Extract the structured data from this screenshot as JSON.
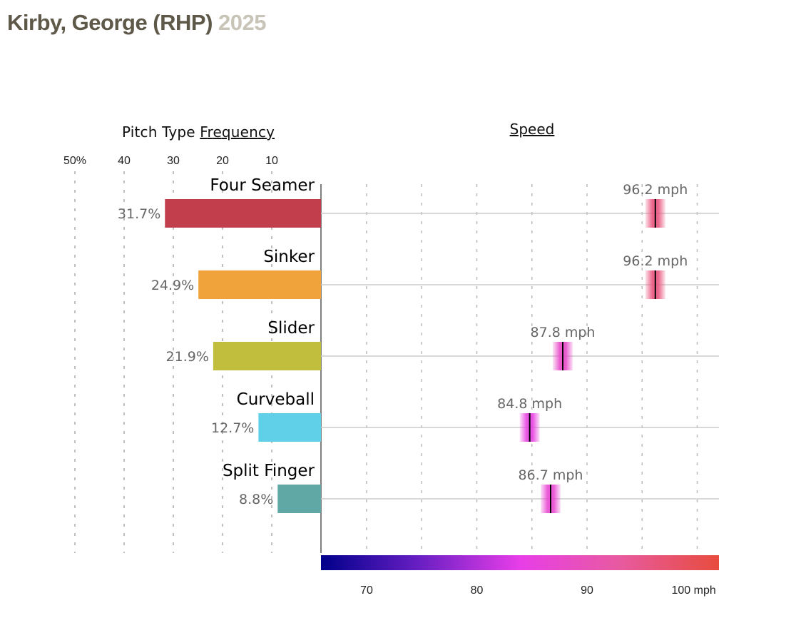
{
  "header": {
    "player": "Kirby, George (RHP)",
    "year": "2025"
  },
  "chart_data": [
    {
      "type": "bar",
      "title_prefix": "Pitch Type ",
      "title_link": "Frequency",
      "orientation": "horizontal-left",
      "xlim": [
        0,
        55
      ],
      "ticks": [
        50,
        40,
        30,
        20,
        10
      ],
      "tick_labels": [
        "50%",
        "40",
        "30",
        "20",
        "10"
      ],
      "categories": [
        "Four Seamer",
        "Sinker",
        "Slider",
        "Curveball",
        "Split Finger"
      ],
      "values": [
        31.7,
        24.9,
        21.9,
        12.7,
        8.8
      ],
      "value_labels": [
        "31.7%",
        "24.9%",
        "21.9%",
        "12.7%",
        "8.8%"
      ],
      "colors": [
        "#c33e4d",
        "#f0a23b",
        "#c1be3e",
        "#5fd0e8",
        "#5fa8a6"
      ]
    },
    {
      "type": "scatter",
      "title_link": "Speed",
      "xlim": [
        65.9,
        102
      ],
      "ticks": [
        70,
        80,
        90,
        100
      ],
      "tick_labels": [
        "70",
        "80",
        "90",
        "100 mph"
      ],
      "grid_minor": [
        75,
        85,
        95
      ],
      "categories": [
        "Four Seamer",
        "Sinker",
        "Slider",
        "Curveball",
        "Split Finger"
      ],
      "values": [
        96.2,
        96.2,
        87.8,
        84.8,
        86.7
      ],
      "value_labels": [
        "96.2 mph",
        "96.2 mph",
        "87.8 mph",
        "84.8 mph",
        "86.7 mph"
      ],
      "colorscale": [
        "#00008b",
        "#6a1fc4",
        "#e83ee8",
        "#e85aa0",
        "#e84c3d"
      ]
    }
  ]
}
